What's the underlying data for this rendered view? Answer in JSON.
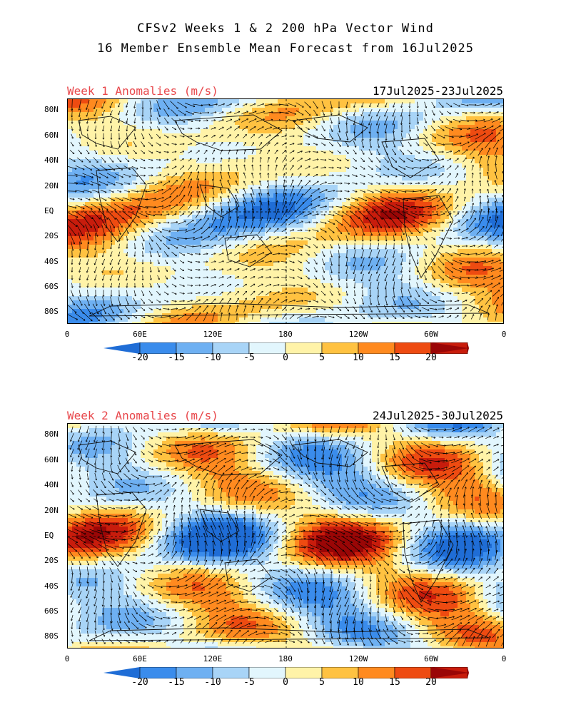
{
  "title": {
    "line1": "CFSv2 Weeks 1 & 2 200 hPa Vector Wind",
    "line2": "16 Member Ensemble Mean Forecast from 16Jul2025"
  },
  "panels": [
    {
      "label": "Week 1 Anomalies (m/s)",
      "dates": "17Jul2025-23Jul2025",
      "y_ticks": [
        "80N",
        "60N",
        "40N",
        "20N",
        "EQ",
        "20S",
        "40S",
        "60S",
        "80S"
      ],
      "x_ticks": [
        "0",
        "60E",
        "120E",
        "180",
        "120W",
        "60W",
        "0"
      ]
    },
    {
      "label": "Week 2 Anomalies (m/s)",
      "dates": "24Jul2025-30Jul2025",
      "y_ticks": [
        "80N",
        "60N",
        "40N",
        "20N",
        "EQ",
        "20S",
        "40S",
        "60S",
        "80S"
      ],
      "x_ticks": [
        "0",
        "60E",
        "120E",
        "180",
        "120W",
        "60W",
        "0"
      ]
    }
  ],
  "colorbar": {
    "labels": [
      "-20",
      "-15",
      "-10",
      "-5",
      "0",
      "5",
      "10",
      "15",
      "20"
    ],
    "colors": [
      "#1f6dd6",
      "#3a8cec",
      "#6eb0f2",
      "#a8d4f7",
      "#e2f6fd",
      "#fff3a8",
      "#ffc241",
      "#ff8a1f",
      "#ee4b11",
      "#c81c0c",
      "#9a0606"
    ]
  }
}
